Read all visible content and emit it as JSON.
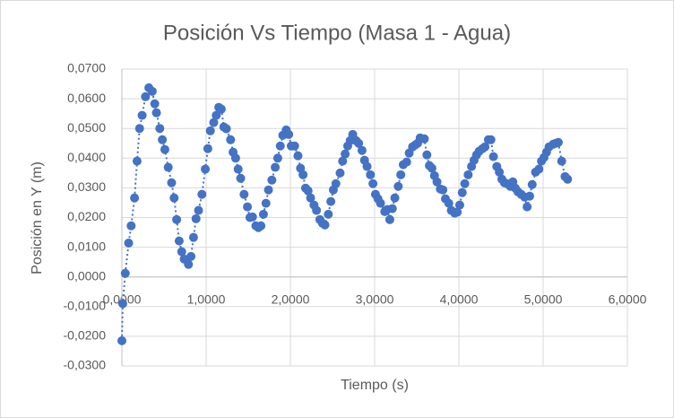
{
  "chart_data": {
    "type": "scatter",
    "title": "Posición Vs Tiempo (Masa 1 - Agua)",
    "x_label": "Tiempo (s)",
    "y_label": "Posición en Y (m)",
    "color": "#4472c4",
    "line": "dotted",
    "grid": true,
    "xlim": [
      0,
      6
    ],
    "ylim": [
      -0.03,
      0.07
    ],
    "xticks": [
      {
        "value": 0,
        "label": "0,0000"
      },
      {
        "value": 1,
        "label": "1,0000"
      },
      {
        "value": 2,
        "label": "2,0000"
      },
      {
        "value": 3,
        "label": "3,0000"
      },
      {
        "value": 4,
        "label": "4,0000"
      },
      {
        "value": 5,
        "label": "5,0000"
      },
      {
        "value": 6,
        "label": "6,0000"
      }
    ],
    "yticks": [
      {
        "value": -0.03,
        "label": "-0,0300"
      },
      {
        "value": -0.02,
        "label": "-0,0200"
      },
      {
        "value": -0.01,
        "label": "-0,0100"
      },
      {
        "value": 0,
        "label": "0,0000"
      },
      {
        "value": 0.01,
        "label": "0,0100"
      },
      {
        "value": 0.02,
        "label": "0,0200"
      },
      {
        "value": 0.03,
        "label": "0,0300"
      },
      {
        "value": 0.04,
        "label": "0,0400"
      },
      {
        "value": 0.05,
        "label": "0,0500"
      },
      {
        "value": 0.06,
        "label": "0,0600"
      },
      {
        "value": 0.07,
        "label": "0,0700"
      }
    ],
    "x": [
      0,
      0.01,
      0.04,
      0.08,
      0.11,
      0.15,
      0.18,
      0.21,
      0.24,
      0.28,
      0.32,
      0.36,
      0.39,
      0.41,
      0.45,
      0.48,
      0.51,
      0.55,
      0.59,
      0.62,
      0.65,
      0.68,
      0.71,
      0.74,
      0.79,
      0.82,
      0.85,
      0.88,
      0.91,
      0.95,
      0.99,
      1.02,
      1.05,
      1.09,
      1.12,
      1.15,
      1.18,
      1.21,
      1.24,
      1.29,
      1.32,
      1.35,
      1.38,
      1.41,
      1.45,
      1.49,
      1.52,
      1.55,
      1.59,
      1.62,
      1.65,
      1.68,
      1.71,
      1.74,
      1.78,
      1.82,
      1.85,
      1.88,
      1.91,
      1.95,
      1.98,
      2.01,
      2.05,
      2.09,
      2.12,
      2.15,
      2.18,
      2.21,
      2.24,
      2.28,
      2.31,
      2.35,
      2.38,
      2.41,
      2.45,
      2.48,
      2.51,
      2.54,
      2.59,
      2.62,
      2.65,
      2.68,
      2.71,
      2.74,
      2.78,
      2.81,
      2.85,
      2.88,
      2.91,
      2.95,
      2.98,
      3.01,
      3.04,
      3.07,
      3.12,
      3.15,
      3.18,
      3.21,
      3.24,
      3.28,
      3.31,
      3.34,
      3.38,
      3.41,
      3.45,
      3.48,
      3.51,
      3.54,
      3.59,
      3.62,
      3.65,
      3.68,
      3.71,
      3.74,
      3.78,
      3.81,
      3.84,
      3.88,
      3.91,
      3.95,
      3.98,
      4.01,
      4.04,
      4.07,
      4.11,
      4.15,
      4.18,
      4.21,
      4.24,
      4.28,
      4.31,
      4.35,
      4.38,
      4.41,
      4.45,
      4.48,
      4.51,
      4.54,
      4.57,
      4.61,
      4.64,
      4.67,
      4.7,
      4.74,
      4.78,
      4.81,
      4.84,
      4.87,
      4.91,
      4.95,
      4.98,
      5.01,
      5.04,
      5.07,
      5.12,
      5.15,
      5.18,
      5.22,
      5.26,
      5.29
    ],
    "values": [
      -0.0215,
      -0.009,
      0.0012,
      0.0114,
      0.0172,
      0.0266,
      0.039,
      0.05,
      0.0544,
      0.0607,
      0.0637,
      0.0625,
      0.0583,
      0.0553,
      0.05,
      0.0462,
      0.0429,
      0.0369,
      0.0317,
      0.0266,
      0.0193,
      0.0121,
      0.0085,
      0.006,
      0.0042,
      0.0069,
      0.0133,
      0.0196,
      0.0224,
      0.0278,
      0.0363,
      0.0432,
      0.0492,
      0.052,
      0.0544,
      0.0571,
      0.0565,
      0.0505,
      0.0499,
      0.0462,
      0.042,
      0.04,
      0.0363,
      0.0332,
      0.0278,
      0.0236,
      0.02,
      0.0202,
      0.0172,
      0.0166,
      0.0172,
      0.0211,
      0.0248,
      0.0293,
      0.0326,
      0.0369,
      0.04,
      0.0441,
      0.0477,
      0.0495,
      0.048,
      0.0441,
      0.0441,
      0.0408,
      0.0366,
      0.0344,
      0.0299,
      0.029,
      0.0266,
      0.0242,
      0.0224,
      0.0193,
      0.0181,
      0.0175,
      0.0211,
      0.0254,
      0.0293,
      0.0314,
      0.035,
      0.039,
      0.0414,
      0.0441,
      0.0459,
      0.048,
      0.0459,
      0.045,
      0.0426,
      0.0393,
      0.0372,
      0.0344,
      0.0314,
      0.0278,
      0.0263,
      0.0248,
      0.022,
      0.0227,
      0.0193,
      0.023,
      0.0266,
      0.0305,
      0.0344,
      0.0378,
      0.0387,
      0.0417,
      0.0438,
      0.0444,
      0.045,
      0.0468,
      0.0465,
      0.0411,
      0.0375,
      0.0366,
      0.0341,
      0.032,
      0.0296,
      0.0293,
      0.0263,
      0.0248,
      0.0224,
      0.0215,
      0.0218,
      0.0242,
      0.0284,
      0.0314,
      0.0344,
      0.0372,
      0.0393,
      0.0411,
      0.0423,
      0.0432,
      0.0438,
      0.0462,
      0.0462,
      0.0405,
      0.0372,
      0.0353,
      0.0329,
      0.0317,
      0.0314,
      0.0305,
      0.032,
      0.0299,
      0.0287,
      0.0278,
      0.0269,
      0.0236,
      0.0272,
      0.0311,
      0.0353,
      0.0363,
      0.039,
      0.0402,
      0.042,
      0.0438,
      0.0447,
      0.045,
      0.0453,
      0.039,
      0.0338,
      0.0329
    ]
  }
}
